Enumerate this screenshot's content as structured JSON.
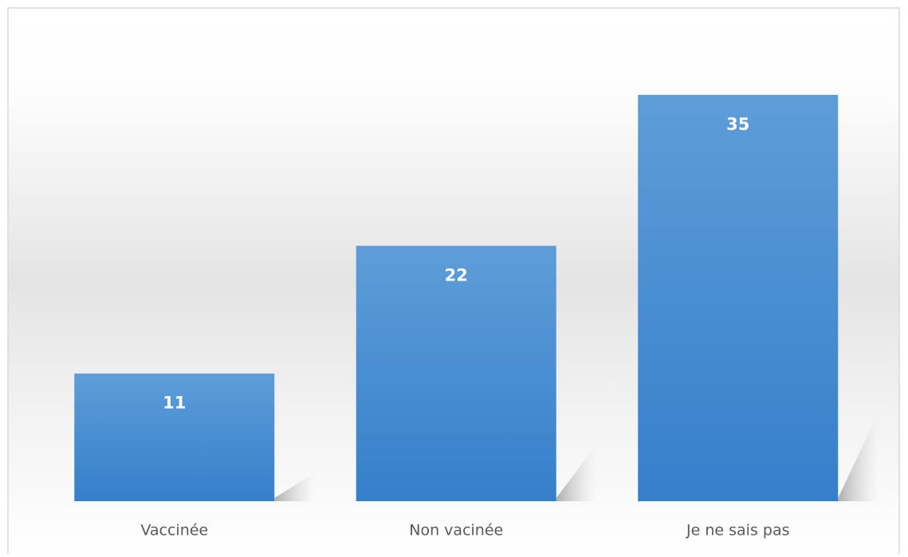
{
  "chart_data": {
    "type": "bar",
    "categories": [
      "Vaccinée",
      "Non vacinée",
      "Je ne sais pas"
    ],
    "values": [
      11,
      22,
      35
    ],
    "color": "#4a8fd6"
  }
}
